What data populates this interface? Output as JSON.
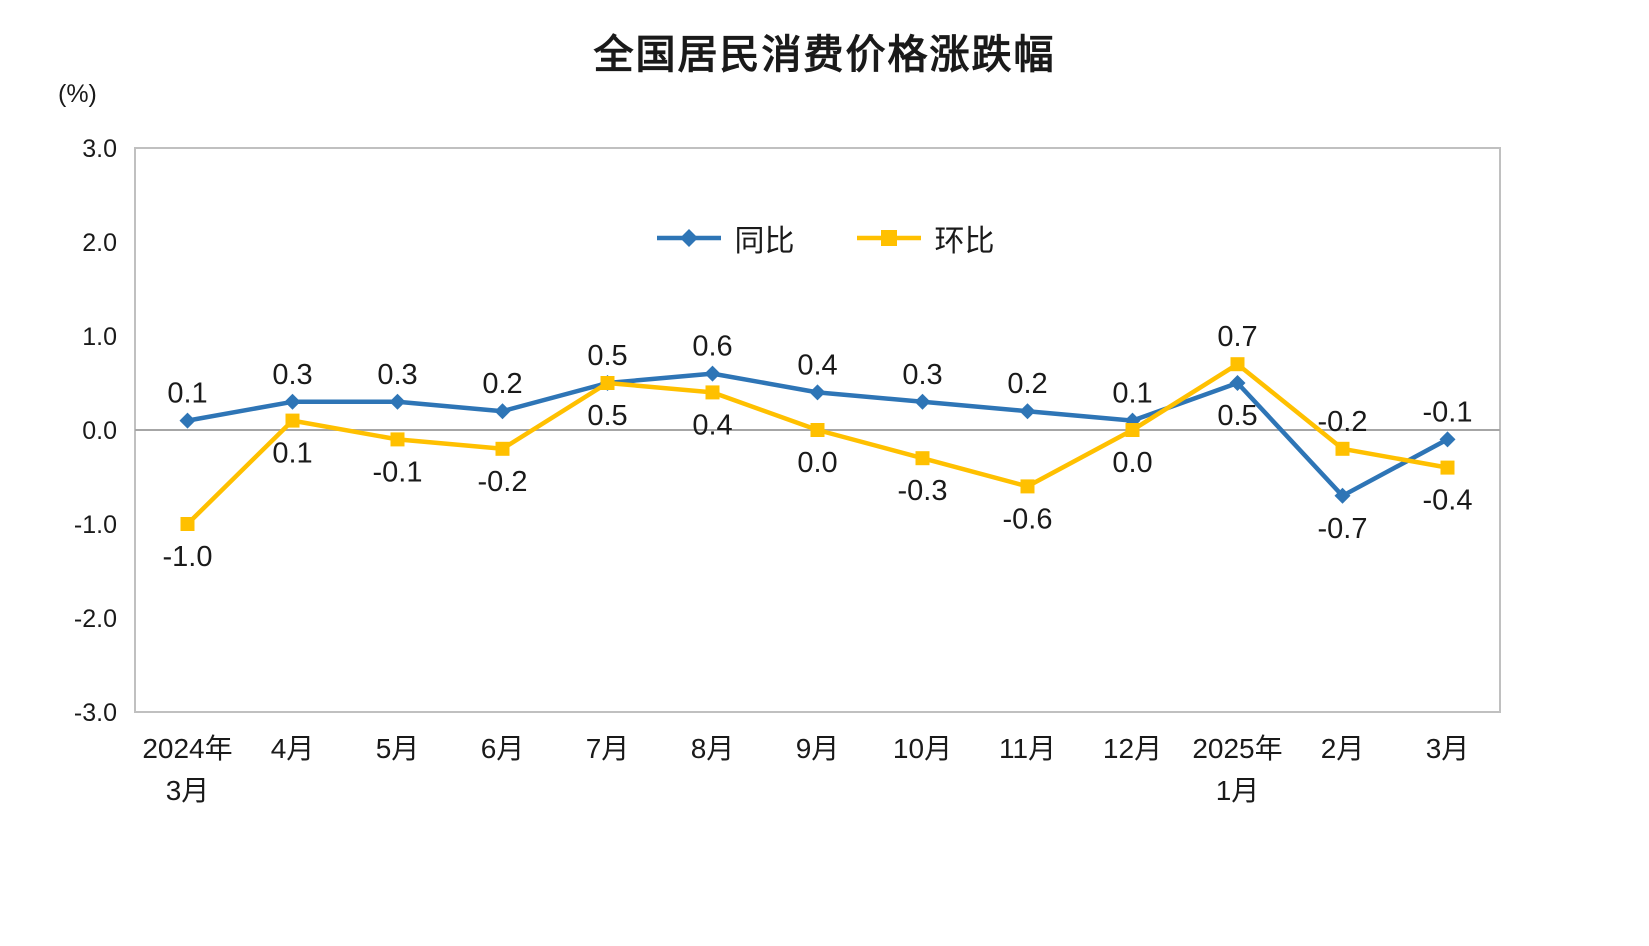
{
  "chart_data": {
    "type": "line",
    "title": "全国居民消费价格涨跌幅",
    "ylabel": "(%)",
    "xlabel": "",
    "ylim": [
      -3.0,
      3.0
    ],
    "ytick_step": 1.0,
    "grid": "zero-line-only",
    "legend_position": "top-center",
    "colors": {
      "frame": "#c0c0c0",
      "zero_line": "#a6a6a6",
      "text": "#1a1a1a",
      "background": "#ffffff"
    },
    "categories": [
      "2024年\n3月",
      "4月",
      "5月",
      "6月",
      "7月",
      "8月",
      "9月",
      "10月",
      "11月",
      "12月",
      "2025年\n1月",
      "2月",
      "3月"
    ],
    "series": [
      {
        "name": "同比",
        "color": "#2e75b6",
        "marker": "diamond",
        "values": [
          0.1,
          0.3,
          0.3,
          0.2,
          0.5,
          0.6,
          0.4,
          0.3,
          0.2,
          0.1,
          0.5,
          -0.7,
          -0.1
        ],
        "label_side": [
          "above",
          "above",
          "above",
          "above",
          "above",
          "above",
          "above",
          "above",
          "above",
          "above",
          "below",
          "below",
          "above"
        ]
      },
      {
        "name": "环比",
        "color": "#ffc000",
        "marker": "square",
        "values": [
          -1.0,
          0.1,
          -0.1,
          -0.2,
          0.5,
          0.4,
          0.0,
          -0.3,
          -0.6,
          0.0,
          0.7,
          -0.2,
          -0.4
        ],
        "label_side": [
          "below",
          "below",
          "below",
          "below",
          "below",
          "below",
          "below",
          "below",
          "below",
          "below",
          "above",
          "above",
          "below"
        ]
      }
    ]
  }
}
